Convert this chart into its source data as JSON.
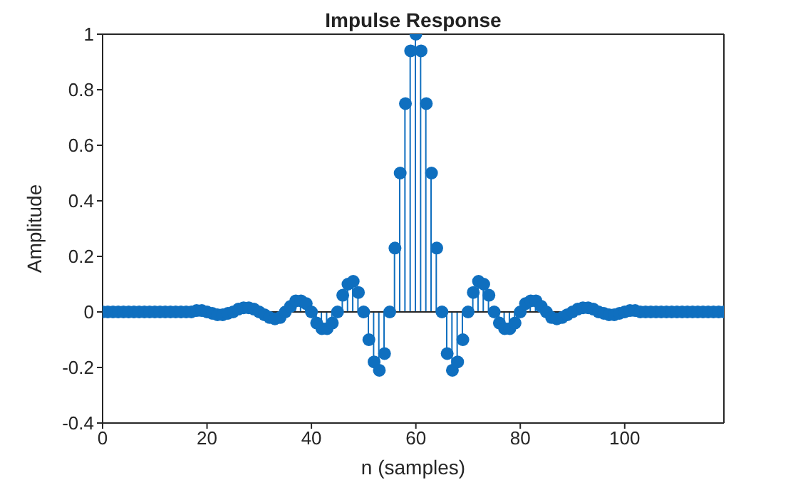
{
  "chart_data": {
    "type": "lollipop",
    "title": "Impulse Response",
    "xlabel": "n (samples)",
    "ylabel": "Amplitude",
    "color": "#0f6fbf",
    "marker": "circle",
    "x": [
      0,
      1,
      2,
      3,
      4,
      5,
      6,
      7,
      8,
      9,
      10,
      11,
      12,
      13,
      14,
      15,
      16,
      17,
      18,
      19,
      20,
      21,
      22,
      23,
      24,
      25,
      26,
      27,
      28,
      29,
      30,
      31,
      32,
      33,
      34,
      35,
      36,
      37,
      38,
      39,
      40,
      41,
      42,
      43,
      44,
      45,
      46,
      47,
      48,
      49,
      50,
      51,
      52,
      53,
      54,
      55,
      56,
      57,
      58,
      59,
      60,
      61,
      62,
      63,
      64,
      65,
      66,
      67,
      68,
      69,
      70,
      71,
      72,
      73,
      74,
      75,
      76,
      77,
      78,
      79,
      80,
      81,
      82,
      83,
      84,
      85,
      86,
      87,
      88,
      89,
      90,
      91,
      92,
      93,
      94,
      95,
      96,
      97,
      98,
      99,
      100,
      101,
      102,
      103,
      104,
      105,
      106,
      107,
      108,
      109,
      110,
      111,
      112,
      113,
      114,
      115,
      116,
      117,
      118,
      119
    ],
    "values": [
      0,
      0,
      0,
      0,
      0,
      0,
      0,
      0,
      0,
      0,
      0,
      0,
      0,
      0,
      0,
      0,
      0,
      0,
      0.005,
      0.005,
      0,
      -0.005,
      -0.01,
      -0.01,
      -0.005,
      0,
      0.01,
      0.015,
      0.015,
      0.01,
      0,
      -0.01,
      -0.02,
      -0.025,
      -0.02,
      0,
      0.02,
      0.04,
      0.04,
      0.03,
      0,
      -0.04,
      -0.06,
      -0.06,
      -0.04,
      0,
      0.06,
      0.1,
      0.11,
      0.07,
      0,
      -0.1,
      -0.18,
      -0.21,
      -0.15,
      0,
      0.23,
      0.5,
      0.75,
      0.94,
      1,
      0.94,
      0.75,
      0.5,
      0.23,
      0,
      -0.15,
      -0.21,
      -0.18,
      -0.1,
      0,
      0.07,
      0.11,
      0.1,
      0.06,
      0,
      -0.04,
      -0.06,
      -0.06,
      -0.04,
      0,
      0.03,
      0.04,
      0.04,
      0.02,
      0,
      -0.02,
      -0.025,
      -0.02,
      -0.01,
      0,
      0.01,
      0.015,
      0.015,
      0.01,
      0,
      -0.005,
      -0.01,
      -0.01,
      -0.005,
      0,
      0.005,
      0.005,
      0,
      0,
      0,
      0,
      0,
      0,
      0,
      0,
      0,
      0,
      0,
      0,
      0,
      0,
      0,
      0,
      0
    ],
    "xlim": [
      0,
      119
    ],
    "xticks": [
      0,
      20,
      40,
      60,
      80,
      100
    ],
    "ylim": [
      -0.4,
      1
    ],
    "yticks": [
      -0.4,
      -0.2,
      0,
      0.2,
      0.4,
      0.6,
      0.8,
      1
    ]
  }
}
